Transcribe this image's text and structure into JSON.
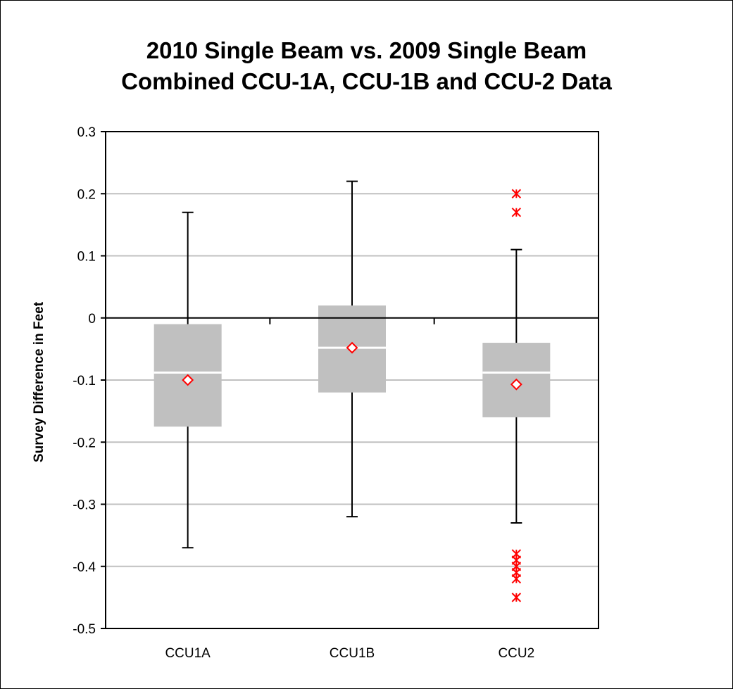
{
  "chart_data": {
    "type": "boxplot",
    "title_line1": "2010 Single Beam vs. 2009 Single Beam",
    "title_line2": "Combined CCU-1A, CCU-1B and CCU-2 Data",
    "ylabel": "Survey Difference in Feet",
    "xlabel": "",
    "ylim": [
      -0.5,
      0.3
    ],
    "yticks": [
      0.3,
      0.2,
      0.1,
      0,
      -0.1,
      -0.2,
      -0.3,
      -0.4,
      -0.5
    ],
    "ytick_labels": [
      "0.3",
      "0.2",
      "0.1",
      "0",
      "-0.1",
      "-0.2",
      "-0.3",
      "-0.4",
      "-0.5"
    ],
    "grid": true,
    "categories": [
      "CCU1A",
      "CCU1B",
      "CCU2"
    ],
    "boxes": [
      {
        "category": "CCU1A",
        "whisker_low": -0.37,
        "q1": -0.175,
        "median": -0.088,
        "q3": -0.01,
        "whisker_high": 0.17,
        "mean": -0.1,
        "outliers": []
      },
      {
        "category": "CCU1B",
        "whisker_low": -0.32,
        "q1": -0.12,
        "median": -0.048,
        "q3": 0.02,
        "whisker_high": 0.22,
        "mean": -0.048,
        "outliers": []
      },
      {
        "category": "CCU2",
        "whisker_low": -0.33,
        "q1": -0.16,
        "median": -0.088,
        "q3": -0.04,
        "whisker_high": 0.11,
        "mean": -0.107,
        "outliers": [
          0.2,
          0.17,
          -0.38,
          -0.39,
          -0.4,
          -0.41,
          -0.42,
          -0.45
        ]
      }
    ],
    "colors": {
      "box": "#c0c0c0",
      "median": "#ffffff",
      "mean_marker": "#ff0000",
      "outlier": "#ff0000",
      "gridline": "#c0c0c0"
    }
  }
}
